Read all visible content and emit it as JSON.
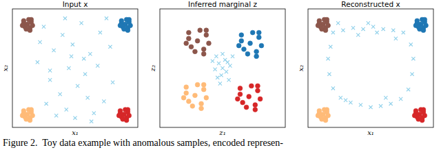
{
  "chart_data": [
    {
      "type": "scatter",
      "title": "Input x",
      "x_label": "x₁",
      "y_label": "x₂",
      "xlim": [
        0,
        1
      ],
      "ylim": [
        0,
        1
      ],
      "tick_labels": false,
      "series": [
        {
          "color": "#8c564b",
          "marker": "o",
          "x": [
            0.12,
            0.15,
            0.09,
            0.14,
            0.1,
            0.16,
            0.08,
            0.13,
            0.11,
            0.15,
            0.09,
            0.14
          ],
          "values": [
            0.87,
            0.89,
            0.88,
            0.84,
            0.85,
            0.86,
            0.86,
            0.91,
            0.83,
            0.91,
            0.9,
            0.82
          ]
        },
        {
          "color": "#1f77b4",
          "marker": "o",
          "x": [
            0.9,
            0.93,
            0.87,
            0.92,
            0.88,
            0.94,
            0.86,
            0.91,
            0.89,
            0.93,
            0.87,
            0.92
          ],
          "values": [
            0.87,
            0.89,
            0.88,
            0.84,
            0.85,
            0.86,
            0.86,
            0.91,
            0.83,
            0.91,
            0.9,
            0.82
          ]
        },
        {
          "color": "#ffbb78",
          "marker": "o",
          "x": [
            0.12,
            0.15,
            0.09,
            0.14,
            0.1,
            0.16,
            0.08,
            0.13,
            0.11,
            0.15,
            0.09,
            0.14
          ],
          "values": [
            0.11,
            0.13,
            0.12,
            0.08,
            0.09,
            0.1,
            0.1,
            0.15,
            0.07,
            0.15,
            0.14,
            0.06
          ]
        },
        {
          "color": "#d62728",
          "marker": "o",
          "x": [
            0.89,
            0.92,
            0.86,
            0.91,
            0.87,
            0.93,
            0.85,
            0.9,
            0.88,
            0.92,
            0.86,
            0.91
          ],
          "values": [
            0.11,
            0.13,
            0.12,
            0.08,
            0.09,
            0.1,
            0.1,
            0.15,
            0.07,
            0.15,
            0.14,
            0.06
          ]
        },
        {
          "color": "#8fd0ea",
          "marker": "x",
          "x": [
            0.25,
            0.4,
            0.55,
            0.7,
            0.33,
            0.48,
            0.62,
            0.78,
            0.2,
            0.45,
            0.58,
            0.3,
            0.68,
            0.52,
            0.38,
            0.8,
            0.27,
            0.6,
            0.43,
            0.73,
            0.35,
            0.5,
            0.65,
            0.22,
            0.57,
            0.75,
            0.42,
            0.3,
            0.63,
            0.47
          ],
          "values": [
            0.85,
            0.78,
            0.88,
            0.8,
            0.65,
            0.7,
            0.62,
            0.68,
            0.55,
            0.5,
            0.45,
            0.4,
            0.52,
            0.35,
            0.28,
            0.38,
            0.2,
            0.25,
            0.15,
            0.22,
            0.1,
            0.08,
            0.12,
            0.72,
            0.58,
            0.92,
            0.92,
            0.48,
            0.05,
            0.6
          ]
        }
      ]
    },
    {
      "type": "scatter",
      "title": "Inferred marginal z",
      "x_label": "z₁",
      "y_label": "z₂",
      "xlim": [
        0,
        1
      ],
      "ylim": [
        0,
        1
      ],
      "tick_labels": false,
      "series": [
        {
          "color": "#8c564b",
          "marker": "o",
          "x": [
            0.3,
            0.37,
            0.23,
            0.35,
            0.25,
            0.39,
            0.21,
            0.32,
            0.28,
            0.37,
            0.23,
            0.35
          ],
          "values": [
            0.73,
            0.78,
            0.75,
            0.66,
            0.68,
            0.71,
            0.71,
            0.82,
            0.64,
            0.82,
            0.8,
            0.62
          ]
        },
        {
          "color": "#1f77b4",
          "marker": "o",
          "x": [
            0.72,
            0.79,
            0.65,
            0.77,
            0.67,
            0.81,
            0.63,
            0.74,
            0.7,
            0.79,
            0.65,
            0.77
          ],
          "values": [
            0.71,
            0.76,
            0.73,
            0.64,
            0.66,
            0.69,
            0.69,
            0.8,
            0.62,
            0.8,
            0.78,
            0.6
          ]
        },
        {
          "color": "#ffbb78",
          "marker": "o",
          "x": [
            0.28,
            0.35,
            0.21,
            0.33,
            0.23,
            0.37,
            0.19,
            0.3,
            0.26,
            0.35,
            0.21,
            0.33
          ],
          "values": [
            0.27,
            0.32,
            0.29,
            0.2,
            0.22,
            0.25,
            0.25,
            0.36,
            0.18,
            0.36,
            0.34,
            0.16
          ]
        },
        {
          "color": "#d62728",
          "marker": "o",
          "x": [
            0.71,
            0.78,
            0.64,
            0.76,
            0.66,
            0.8,
            0.62,
            0.73,
            0.69,
            0.78,
            0.64,
            0.76
          ],
          "values": [
            0.26,
            0.31,
            0.28,
            0.19,
            0.21,
            0.24,
            0.24,
            0.35,
            0.17,
            0.35,
            0.33,
            0.15
          ]
        },
        {
          "color": "#8fd0ea",
          "marker": "x",
          "x": [
            0.5,
            0.47,
            0.53,
            0.44,
            0.56,
            0.49,
            0.52,
            0.46,
            0.55,
            0.42,
            0.58,
            0.5,
            0.48,
            0.54,
            0.45
          ],
          "values": [
            0.5,
            0.54,
            0.47,
            0.49,
            0.52,
            0.44,
            0.57,
            0.42,
            0.4,
            0.56,
            0.6,
            0.62,
            0.37,
            0.55,
            0.6
          ]
        }
      ]
    },
    {
      "type": "scatter",
      "title": "Reconstructed x",
      "x_label": "x₁",
      "y_label": "x₂",
      "xlim": [
        0,
        1
      ],
      "ylim": [
        0,
        1
      ],
      "tick_labels": false,
      "series": [
        {
          "color": "#8c564b",
          "marker": "o",
          "x": [
            0.12,
            0.15,
            0.09,
            0.14,
            0.1,
            0.16,
            0.08,
            0.13,
            0.11,
            0.15,
            0.09,
            0.14
          ],
          "values": [
            0.87,
            0.89,
            0.88,
            0.84,
            0.85,
            0.86,
            0.86,
            0.91,
            0.83,
            0.91,
            0.9,
            0.82
          ]
        },
        {
          "color": "#1f77b4",
          "marker": "o",
          "x": [
            0.9,
            0.93,
            0.87,
            0.92,
            0.88,
            0.94,
            0.86,
            0.91,
            0.89,
            0.93,
            0.87,
            0.92
          ],
          "values": [
            0.87,
            0.89,
            0.88,
            0.84,
            0.85,
            0.86,
            0.86,
            0.91,
            0.83,
            0.91,
            0.9,
            0.82
          ]
        },
        {
          "color": "#ffbb78",
          "marker": "o",
          "x": [
            0.12,
            0.15,
            0.09,
            0.14,
            0.1,
            0.16,
            0.08,
            0.13,
            0.11,
            0.15,
            0.09,
            0.14
          ],
          "values": [
            0.11,
            0.13,
            0.12,
            0.08,
            0.09,
            0.1,
            0.1,
            0.15,
            0.07,
            0.15,
            0.14,
            0.06
          ]
        },
        {
          "color": "#d62728",
          "marker": "o",
          "x": [
            0.89,
            0.92,
            0.86,
            0.91,
            0.87,
            0.93,
            0.85,
            0.9,
            0.88,
            0.92,
            0.86,
            0.91
          ],
          "values": [
            0.11,
            0.13,
            0.12,
            0.08,
            0.09,
            0.1,
            0.1,
            0.15,
            0.07,
            0.15,
            0.14,
            0.06
          ]
        },
        {
          "color": "#8fd0ea",
          "marker": "x",
          "x": [
            0.2,
            0.28,
            0.36,
            0.44,
            0.52,
            0.6,
            0.68,
            0.76,
            0.82,
            0.84,
            0.83,
            0.8,
            0.74,
            0.66,
            0.58,
            0.5,
            0.42,
            0.34,
            0.26,
            0.2,
            0.17,
            0.16,
            0.18,
            0.24,
            0.4,
            0.55,
            0.7,
            0.3,
            0.62,
            0.48
          ],
          "values": [
            0.8,
            0.82,
            0.84,
            0.83,
            0.85,
            0.83,
            0.82,
            0.8,
            0.7,
            0.58,
            0.45,
            0.32,
            0.24,
            0.2,
            0.18,
            0.17,
            0.19,
            0.21,
            0.25,
            0.33,
            0.45,
            0.58,
            0.68,
            0.88,
            0.78,
            0.8,
            0.75,
            0.23,
            0.25,
            0.88
          ]
        }
      ]
    }
  ],
  "caption": "Figure 2.  Toy data example with anomalous samples, encoded represen-"
}
